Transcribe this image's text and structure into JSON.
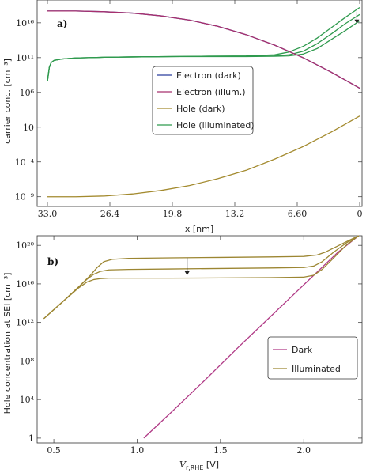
{
  "colors": {
    "electron_dark": "#2a3f9e",
    "electron_illum": "#a8306e",
    "hole_dark": "#a38a2e",
    "hole_illum": "#2f9a4e",
    "dark_b": "#b03a86",
    "illuminated_b": "#9c8632"
  },
  "chart_data": [
    {
      "type": "line",
      "panel_label": "a)",
      "xlabel": "x [nm]",
      "ylabel": "carrier conc. [cm⁻³]",
      "y_scale": "log",
      "x_reversed": true,
      "xlim": [
        33.0,
        0
      ],
      "ylim_log10": [
        -9.6,
        18.6
      ],
      "x_ticks": [
        33.0,
        26.4,
        19.8,
        13.2,
        6.6,
        0
      ],
      "x_tick_labels": [
        "33.0",
        "26.4",
        "19.8",
        "13.2",
        "6.60",
        "0"
      ],
      "y_ticks_log10": [
        -9,
        -4,
        1,
        6,
        11,
        16
      ],
      "y_tick_labels": [
        "10⁻⁹",
        "10⁻⁴",
        "10",
        "10⁶",
        "10¹¹",
        "10¹⁶"
      ],
      "legend": {
        "position": "center-right",
        "entries": [
          "Electron (dark)",
          "Electron (illum.)",
          "Hole (dark)",
          "Hole (illuminated)"
        ]
      },
      "series": [
        {
          "name": "Electron (dark)",
          "x": [
            33,
            30,
            27,
            24,
            21,
            18,
            15,
            12,
            9,
            6,
            3,
            0
          ],
          "log10_y": [
            17.7,
            17.7,
            17.6,
            17.4,
            17.0,
            16.4,
            15.5,
            14.3,
            12.8,
            11.0,
            8.9,
            6.6
          ]
        },
        {
          "name": "Electron (illum.)",
          "x": [
            33,
            30,
            27,
            24,
            21,
            18,
            15,
            12,
            9,
            6,
            3,
            0
          ],
          "log10_y": [
            17.7,
            17.7,
            17.6,
            17.4,
            17.0,
            16.4,
            15.5,
            14.3,
            12.8,
            11.0,
            8.9,
            6.6
          ]
        },
        {
          "name": "Hole (dark)",
          "x": [
            33,
            30,
            27,
            24,
            21,
            18,
            15,
            12,
            9,
            6,
            3,
            0
          ],
          "log10_y": [
            -9.0,
            -9.0,
            -8.9,
            -8.6,
            -8.1,
            -7.4,
            -6.4,
            -5.2,
            -3.6,
            -1.8,
            0.3,
            2.6
          ]
        },
        {
          "name": "Hole (illuminated)",
          "curves": [
            {
              "x": [
                33,
                32.8,
                32.6,
                32.3,
                31.5,
                30,
                27,
                24,
                20,
                16,
                12,
                9,
                7.5,
                6,
                4.5,
                3,
                1.5,
                0
              ],
              "log10_y": [
                7.6,
                9.6,
                10.3,
                10.6,
                10.8,
                10.95,
                11.05,
                11.1,
                11.15,
                11.2,
                11.25,
                11.4,
                11.8,
                12.6,
                13.8,
                15.3,
                16.8,
                18.2
              ]
            },
            {
              "x": [
                33,
                32.8,
                32.6,
                32.3,
                31.5,
                30,
                27,
                24,
                20,
                16,
                12,
                9,
                7.5,
                6,
                4.5,
                3,
                1.5,
                0
              ],
              "log10_y": [
                7.6,
                9.6,
                10.3,
                10.6,
                10.8,
                10.95,
                11.05,
                11.1,
                11.15,
                11.2,
                11.2,
                11.25,
                11.4,
                11.9,
                13.0,
                14.4,
                15.9,
                17.2
              ]
            },
            {
              "x": [
                33,
                32.8,
                32.6,
                32.3,
                31.5,
                30,
                27,
                24,
                20,
                16,
                12,
                9,
                7.5,
                6,
                4.5,
                3,
                1.5,
                0
              ],
              "log10_y": [
                7.6,
                9.6,
                10.3,
                10.6,
                10.8,
                10.95,
                11.05,
                11.1,
                11.15,
                11.15,
                11.15,
                11.2,
                11.25,
                11.5,
                12.3,
                13.6,
                14.9,
                16.3
              ]
            }
          ]
        }
      ],
      "annotations": [
        {
          "type": "arrow",
          "direction": "down",
          "x": 0.3,
          "from_log10": 17.6,
          "to_log10": 15.9
        }
      ]
    },
    {
      "type": "line",
      "panel_label": "b)",
      "xlabel_main": "V",
      "xlabel_sub": "r,RHE",
      "xlabel_unit": " [V]",
      "ylabel": "Hole concentration at SEI [cm⁻³]",
      "y_scale": "log",
      "xlim": [
        0.4,
        2.35
      ],
      "ylim_log10": [
        -0.5,
        21.0
      ],
      "x_ticks": [
        0.5,
        1.0,
        1.5,
        2.0
      ],
      "x_tick_labels": [
        "0.5",
        "1.0",
        "1.5",
        "2.0"
      ],
      "y_ticks_log10": [
        0,
        4,
        8,
        12,
        16,
        20
      ],
      "y_tick_labels": [
        "1",
        "10⁴",
        "10⁸",
        "10¹²",
        "10¹⁶",
        "10²⁰"
      ],
      "legend": {
        "position": "center-right",
        "entries": [
          "Dark",
          "Illuminated"
        ]
      },
      "series": [
        {
          "name": "Dark",
          "x": [
            1.04,
            1.2,
            1.4,
            1.6,
            1.8,
            2.0,
            2.2,
            2.33
          ],
          "log10_y": [
            0.0,
            2.6,
            5.9,
            9.3,
            12.6,
            15.9,
            19.2,
            21.0
          ]
        },
        {
          "name": "Illuminated",
          "curves": [
            {
              "x": [
                0.44,
                0.55,
                0.65,
                0.72,
                0.76,
                0.8,
                0.85,
                0.95,
                1.2,
                1.5,
                1.8,
                2.0,
                2.08,
                2.13,
                2.2,
                2.27,
                2.33
              ],
              "log10_y": [
                12.4,
                14.1,
                15.7,
                16.9,
                17.7,
                18.3,
                18.55,
                18.65,
                18.7,
                18.75,
                18.8,
                18.85,
                19.0,
                19.3,
                19.9,
                20.5,
                21.0
              ]
            },
            {
              "x": [
                0.44,
                0.55,
                0.65,
                0.7,
                0.74,
                0.78,
                0.83,
                0.95,
                1.2,
                1.5,
                1.8,
                2.0,
                2.06,
                2.11,
                2.18,
                2.26,
                2.33
              ],
              "log10_y": [
                12.4,
                14.1,
                15.7,
                16.5,
                17.0,
                17.3,
                17.45,
                17.5,
                17.55,
                17.6,
                17.65,
                17.7,
                17.85,
                18.3,
                19.3,
                20.3,
                21.0
              ]
            },
            {
              "x": [
                0.44,
                0.55,
                0.65,
                0.7,
                0.74,
                0.78,
                0.83,
                0.95,
                1.2,
                1.5,
                1.8,
                2.0,
                2.06,
                2.11,
                2.18,
                2.26,
                2.33
              ],
              "log10_y": [
                12.4,
                14.1,
                15.6,
                16.2,
                16.45,
                16.55,
                16.6,
                16.6,
                16.6,
                16.62,
                16.65,
                16.7,
                16.9,
                17.5,
                18.7,
                20.1,
                21.0
              ]
            }
          ]
        }
      ],
      "annotations": [
        {
          "type": "arrow",
          "direction": "down",
          "x": 1.3,
          "from_log10": 18.7,
          "to_log10": 16.9
        }
      ]
    }
  ]
}
